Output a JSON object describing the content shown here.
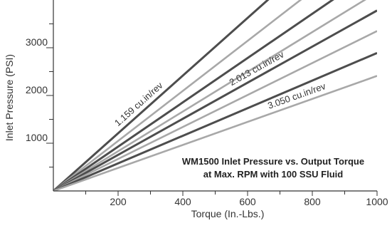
{
  "chart_data": {
    "type": "line",
    "title": "",
    "annotation": [
      "WM1500 Inlet Pressure vs. Output Torque",
      "at Max. RPM with 100 SSU Fluid"
    ],
    "xlabel": "Torque (In.-Lbs.)",
    "ylabel": "Inlet Pressure (PSI)",
    "xlim": [
      0,
      1000
    ],
    "ylim": [
      0,
      4000
    ],
    "xticks": [
      200,
      400,
      600,
      800,
      1000
    ],
    "yticks": [
      1000,
      2000,
      3000
    ],
    "grid": false,
    "colors": {
      "dark": "#4d4d4d",
      "light": "#a8a8a8",
      "axis": "#333333"
    },
    "series": [
      {
        "name": "1.159 cu.in/rev",
        "labeled": true,
        "color": "dark",
        "x": [
          0,
          1000
        ],
        "y": [
          0,
          6040
        ]
      },
      {
        "color": "light",
        "x": [
          0,
          1000
        ],
        "y": [
          0,
          5240
        ]
      },
      {
        "color": "dark",
        "x": [
          0,
          1000
        ],
        "y": [
          0,
          4640
        ]
      },
      {
        "color": "light",
        "x": [
          0,
          1000
        ],
        "y": [
          0,
          4160
        ]
      },
      {
        "name": "2.013 cu.in/rev",
        "labeled": true,
        "color": "dark",
        "x": [
          0,
          1000
        ],
        "y": [
          0,
          3780
        ]
      },
      {
        "color": "light",
        "x": [
          0,
          1000
        ],
        "y": [
          0,
          3350
        ]
      },
      {
        "color": "dark",
        "x": [
          0,
          1000
        ],
        "y": [
          0,
          2890
        ]
      },
      {
        "name": "3.050 cu.in/rev",
        "labeled": true,
        "color": "light",
        "x": [
          0,
          1000
        ],
        "y": [
          0,
          2410
        ]
      }
    ]
  }
}
